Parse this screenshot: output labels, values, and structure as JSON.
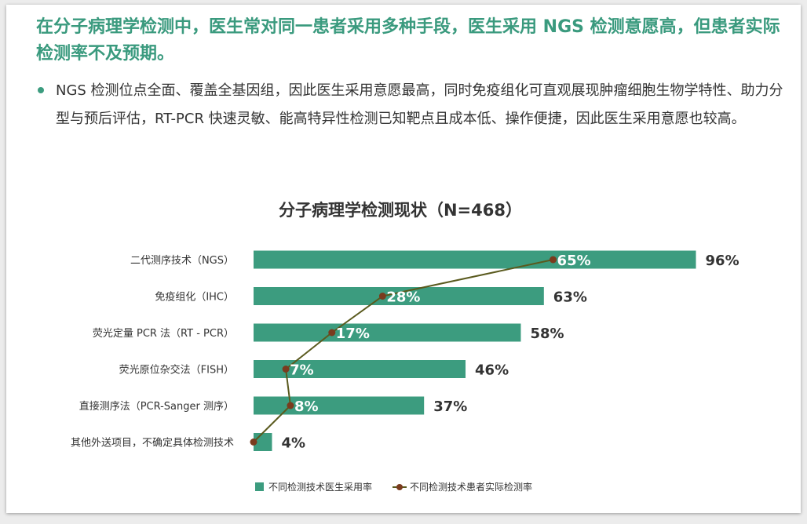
{
  "headline": "在分子病理学检测中，医生常对同一患者采用多种手段，医生采用 NGS 检测意愿高，但患者实际检测率不及预期。",
  "bullet": "NGS 检测位点全面、覆盖全基因组，因此医生采用意愿最高，同时免疫组化可直观展现肿瘤细胞生物学特性、助力分型与预后评估，RT-PCR 快速灵敏、能高特异性检测已知靶点且成本低、操作便捷，因此医生采用意愿也较高。",
  "colors": {
    "bar": "#3c9c7f",
    "line": "#5a5a1e",
    "dot": "#7a3b1e",
    "headline": "#3a9a7e"
  },
  "chart_data": {
    "type": "bar",
    "orientation": "horizontal",
    "title": "分子病理学检测现状（N=468）",
    "categories": [
      "二代测序技术（NGS）",
      "免疫组化（IHC）",
      "荧光定量 PCR 法（RT - PCR）",
      "荧光原位杂交法（FISH）",
      "直接测序法（PCR-Sanger 测序）",
      "其他外送项目，不确定具体检测技术"
    ],
    "series": [
      {
        "name": "不同检测技术医生采用率",
        "kind": "bar",
        "values": [
          96,
          63,
          58,
          46,
          37,
          4
        ],
        "labels": [
          "96%",
          "63%",
          "58%",
          "46%",
          "37%",
          "4%"
        ]
      },
      {
        "name": "不同检测技术患者实际检测率",
        "kind": "line",
        "values": [
          65,
          28,
          17,
          7,
          8,
          0
        ],
        "labels": [
          "65%",
          "28%",
          "17%",
          "7%",
          "8%",
          ""
        ]
      }
    ],
    "xlim": [
      0,
      100
    ],
    "legend": "bottom"
  }
}
